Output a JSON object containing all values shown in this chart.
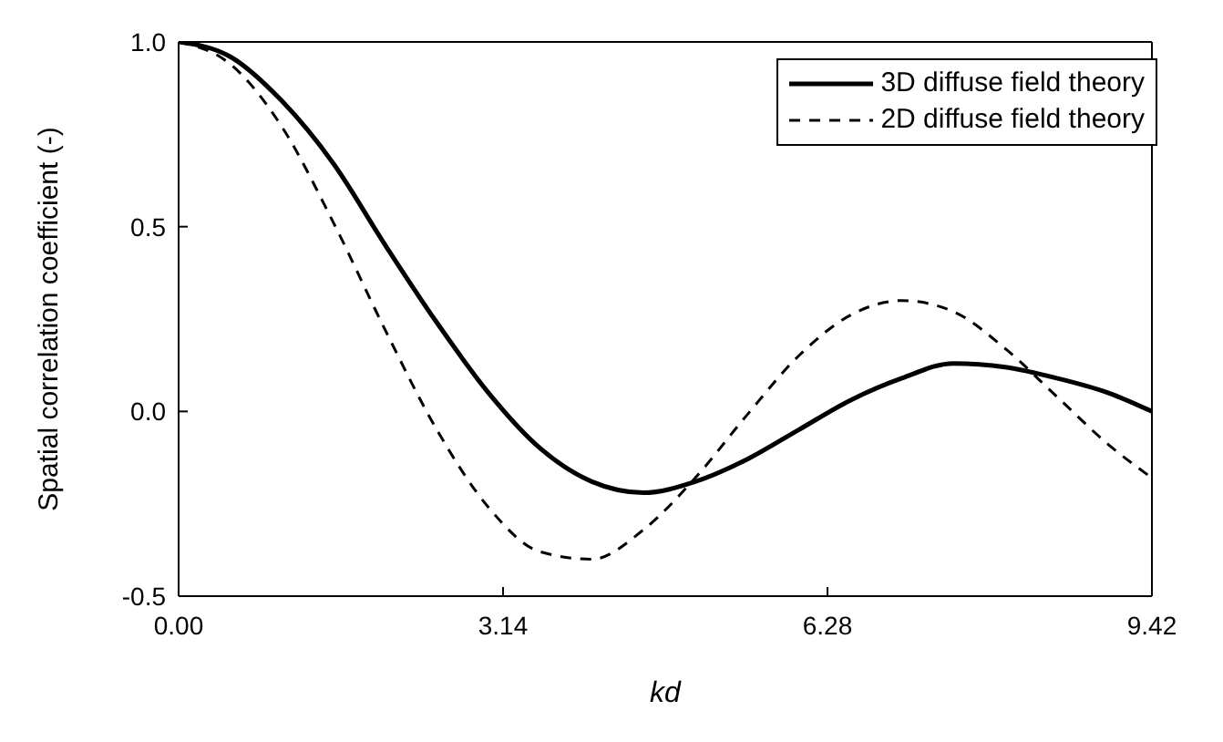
{
  "chart_data": {
    "type": "line",
    "xlabel": "kd",
    "ylabel": "Spatial correlation coefficient (-)",
    "xlim": [
      0,
      9.42
    ],
    "xticks": [
      {
        "value": 0,
        "label": "0.00"
      },
      3.14,
      6.28,
      9.42
    ],
    "ylim": [
      -0.5,
      1.0
    ],
    "yticks": [
      {
        "value": -0.5,
        "label": "-0.5"
      },
      {
        "value": 0,
        "label": "0.0"
      },
      0.5,
      {
        "value": 1,
        "label": "1.0"
      }
    ],
    "grid": false,
    "legend": "top right",
    "marker": "none",
    "series": [
      {
        "name": "3D diffuse field theory",
        "color": "#000000",
        "line_style": "solid",
        "x": [
          0,
          0.5,
          1,
          1.5,
          2,
          2.5,
          3,
          3.5,
          4,
          4.5,
          5,
          5.5,
          6,
          6.5,
          7,
          7.5,
          8,
          8.5,
          9,
          9.42
        ],
        "values": [
          1.0,
          0.96,
          0.84,
          0.67,
          0.45,
          0.24,
          0.05,
          -0.1,
          -0.19,
          -0.22,
          -0.19,
          -0.13,
          -0.05,
          0.03,
          0.09,
          0.13,
          0.12,
          0.09,
          0.05,
          0.0
        ]
      },
      {
        "name": "2D diffuse field theory",
        "color": "#000000",
        "line_style": "dashed",
        "x": [
          0,
          0.5,
          1,
          1.5,
          2,
          2.5,
          3,
          3.5,
          4,
          4.5,
          5,
          5.5,
          6,
          6.5,
          7,
          7.5,
          8,
          8.5,
          9,
          9.42
        ],
        "values": [
          1.0,
          0.94,
          0.77,
          0.51,
          0.22,
          -0.05,
          -0.26,
          -0.38,
          -0.4,
          -0.32,
          -0.18,
          -0.01,
          0.15,
          0.26,
          0.3,
          0.27,
          0.17,
          0.04,
          -0.09,
          -0.18
        ]
      }
    ]
  }
}
